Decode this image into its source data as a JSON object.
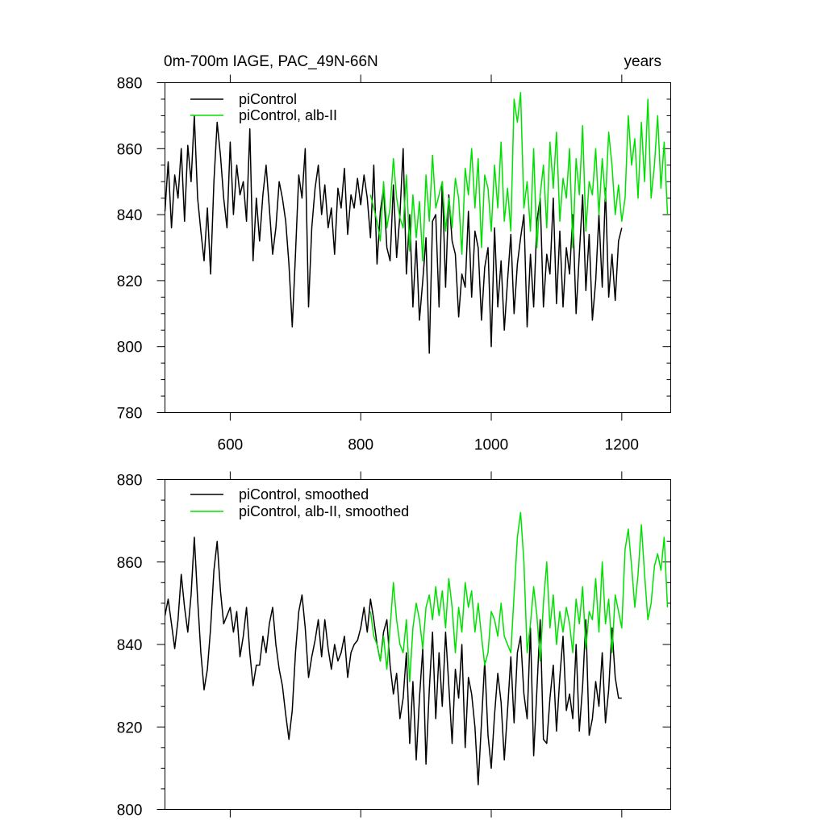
{
  "colors": {
    "picontrol": "#000000",
    "alb": "#00e000",
    "axis": "#000000",
    "background": "#ffffff"
  },
  "chart_data": [
    {
      "id": "top",
      "type": "line",
      "title": "0m-700m IAGE, PAC_49N-66N",
      "title_right": "years",
      "xlabel": "",
      "ylabel": "",
      "xlim": [
        500,
        1275
      ],
      "ylim": [
        780,
        880
      ],
      "xticks": [
        600,
        800,
        1000,
        1200
      ],
      "xtick_labels": [
        "600",
        "800",
        "1000",
        "1200"
      ],
      "yticks": [
        780,
        800,
        820,
        840,
        860,
        880
      ],
      "ytick_labels": [
        "780",
        "800",
        "820",
        "840",
        "860",
        "880"
      ],
      "legend_position": "top-left",
      "series": [
        {
          "name": "piControl",
          "color": "#000000",
          "x": [
            500,
            505,
            510,
            515,
            520,
            525,
            530,
            535,
            540,
            545,
            550,
            555,
            560,
            565,
            570,
            575,
            580,
            585,
            590,
            595,
            600,
            605,
            610,
            615,
            620,
            625,
            630,
            635,
            640,
            645,
            650,
            655,
            660,
            665,
            670,
            675,
            680,
            685,
            690,
            695,
            700,
            705,
            710,
            715,
            720,
            725,
            730,
            735,
            740,
            745,
            750,
            755,
            760,
            765,
            770,
            775,
            780,
            785,
            790,
            795,
            800,
            805,
            810,
            815,
            820,
            825,
            830,
            835,
            840,
            845,
            850,
            855,
            860,
            865,
            870,
            875,
            880,
            885,
            890,
            895,
            900,
            905,
            910,
            915,
            920,
            925,
            930,
            935,
            940,
            945,
            950,
            955,
            960,
            965,
            970,
            975,
            980,
            985,
            990,
            995,
            1000,
            1005,
            1010,
            1015,
            1020,
            1025,
            1030,
            1035,
            1040,
            1045,
            1050,
            1055,
            1060,
            1065,
            1070,
            1075,
            1080,
            1085,
            1090,
            1095,
            1100,
            1105,
            1110,
            1115,
            1120,
            1125,
            1130,
            1135,
            1140,
            1145,
            1150,
            1155,
            1160,
            1165,
            1170,
            1175,
            1180,
            1185,
            1190,
            1195,
            1200
          ],
          "values": [
            841,
            856,
            836,
            852,
            845,
            860,
            838,
            861,
            850,
            870,
            845,
            835,
            826,
            842,
            822,
            850,
            868,
            858,
            845,
            836,
            862,
            840,
            855,
            846,
            850,
            838,
            866,
            826,
            845,
            832,
            846,
            855,
            842,
            828,
            836,
            850,
            845,
            838,
            825,
            806,
            828,
            852,
            845,
            860,
            812,
            836,
            848,
            855,
            840,
            849,
            836,
            842,
            828,
            848,
            842,
            854,
            834,
            846,
            842,
            851,
            843,
            852,
            845,
            833,
            855,
            825,
            841,
            848,
            830,
            826,
            849,
            827,
            840,
            860,
            822,
            840,
            812,
            832,
            808,
            820,
            833,
            798,
            838,
            840,
            812,
            850,
            818,
            846,
            832,
            828,
            809,
            822,
            818,
            841,
            815,
            835,
            830,
            808,
            824,
            830,
            800,
            836,
            812,
            826,
            805,
            820,
            834,
            810,
            825,
            833,
            840,
            806,
            828,
            812,
            838,
            845,
            812,
            828,
            822,
            845,
            813,
            835,
            812,
            830,
            822,
            840,
            810,
            828,
            846,
            817,
            834,
            808,
            820,
            840,
            818,
            848,
            815,
            828,
            814,
            832,
            836
          ]
        },
        {
          "name": "piControl, alb-II",
          "color": "#00e000",
          "x": [
            815,
            820,
            825,
            830,
            835,
            840,
            845,
            850,
            855,
            860,
            865,
            870,
            875,
            880,
            885,
            890,
            895,
            900,
            905,
            910,
            915,
            920,
            925,
            930,
            935,
            940,
            945,
            950,
            955,
            960,
            965,
            970,
            975,
            980,
            985,
            990,
            995,
            1000,
            1005,
            1010,
            1015,
            1020,
            1025,
            1030,
            1035,
            1040,
            1045,
            1050,
            1055,
            1060,
            1065,
            1070,
            1075,
            1080,
            1085,
            1090,
            1095,
            1100,
            1105,
            1110,
            1115,
            1120,
            1125,
            1130,
            1135,
            1140,
            1145,
            1150,
            1155,
            1160,
            1165,
            1170,
            1175,
            1180,
            1185,
            1190,
            1195,
            1200,
            1205,
            1210,
            1215,
            1220,
            1225,
            1230,
            1235,
            1240,
            1245,
            1250,
            1255,
            1260,
            1265,
            1270
          ],
          "values": [
            846,
            842,
            838,
            832,
            850,
            836,
            842,
            857,
            845,
            839,
            836,
            852,
            829,
            846,
            833,
            844,
            826,
            852,
            838,
            858,
            842,
            846,
            850,
            835,
            845,
            836,
            851,
            845,
            828,
            854,
            846,
            860,
            842,
            857,
            830,
            852,
            848,
            835,
            855,
            842,
            862,
            838,
            848,
            835,
            875,
            868,
            877,
            842,
            850,
            835,
            860,
            830,
            846,
            855,
            836,
            862,
            848,
            865,
            838,
            851,
            845,
            860,
            830,
            857,
            846,
            867,
            835,
            850,
            846,
            860,
            840,
            857,
            844,
            865,
            855,
            840,
            849,
            838,
            845,
            870,
            855,
            863,
            845,
            868,
            850,
            875,
            845,
            855,
            870,
            848,
            862,
            840
          ]
        }
      ]
    },
    {
      "id": "bottom",
      "type": "line",
      "title": "",
      "xlabel": "",
      "ylabel": "",
      "xlim": [
        500,
        1275
      ],
      "ylim": [
        800,
        880
      ],
      "xticks": [
        600,
        800,
        1000,
        1200
      ],
      "xtick_labels": [],
      "yticks": [
        800,
        820,
        840,
        860,
        880
      ],
      "ytick_labels": [
        "800",
        "820",
        "840",
        "860",
        "880"
      ],
      "legend_position": "top-left",
      "series": [
        {
          "name": "piControl, smoothed",
          "color": "#000000",
          "x": [
            500,
            505,
            510,
            515,
            520,
            525,
            530,
            535,
            540,
            545,
            550,
            555,
            560,
            565,
            570,
            575,
            580,
            585,
            590,
            595,
            600,
            605,
            610,
            615,
            620,
            625,
            630,
            635,
            640,
            645,
            650,
            655,
            660,
            665,
            670,
            675,
            680,
            685,
            690,
            695,
            700,
            705,
            710,
            715,
            720,
            725,
            730,
            735,
            740,
            745,
            750,
            755,
            760,
            765,
            770,
            775,
            780,
            785,
            790,
            795,
            800,
            805,
            810,
            815,
            820,
            825,
            830,
            835,
            840,
            845,
            850,
            855,
            860,
            865,
            870,
            875,
            880,
            885,
            890,
            895,
            900,
            905,
            910,
            915,
            920,
            925,
            930,
            935,
            940,
            945,
            950,
            955,
            960,
            965,
            970,
            975,
            980,
            985,
            990,
            995,
            1000,
            1005,
            1010,
            1015,
            1020,
            1025,
            1030,
            1035,
            1040,
            1045,
            1050,
            1055,
            1060,
            1065,
            1070,
            1075,
            1080,
            1085,
            1090,
            1095,
            1100,
            1105,
            1110,
            1115,
            1120,
            1125,
            1130,
            1135,
            1140,
            1145,
            1150,
            1155,
            1160,
            1165,
            1170,
            1175,
            1180,
            1185,
            1190,
            1195,
            1200
          ],
          "values": [
            847,
            851,
            845,
            839,
            846,
            857,
            849,
            843,
            852,
            866,
            851,
            838,
            829,
            834,
            844,
            858,
            865,
            853,
            845,
            847,
            849,
            843,
            848,
            837,
            842,
            849,
            838,
            830,
            835,
            835,
            842,
            838,
            845,
            849,
            840,
            834,
            830,
            823,
            817,
            824,
            838,
            848,
            852,
            844,
            832,
            837,
            841,
            846,
            837,
            846,
            839,
            834,
            840,
            836,
            838,
            842,
            832,
            838,
            840,
            841,
            844,
            849,
            843,
            851,
            846,
            840,
            836,
            843,
            846,
            835,
            828,
            833,
            822,
            827,
            838,
            816,
            831,
            812,
            827,
            839,
            811,
            829,
            843,
            822,
            838,
            825,
            843,
            830,
            816,
            834,
            827,
            840,
            815,
            832,
            828,
            820,
            806,
            821,
            836,
            818,
            810,
            823,
            833,
            826,
            812,
            824,
            837,
            821,
            838,
            842,
            828,
            822,
            844,
            813,
            829,
            846,
            817,
            816,
            827,
            835,
            819,
            832,
            842,
            824,
            828,
            822,
            840,
            819,
            830,
            846,
            818,
            822,
            831,
            825,
            838,
            821,
            829,
            844,
            832,
            827,
            827
          ]
        },
        {
          "name": "piControl, alb-II, smoothed",
          "color": "#00e000",
          "x": [
            815,
            820,
            825,
            830,
            835,
            840,
            845,
            850,
            855,
            860,
            865,
            870,
            875,
            880,
            885,
            890,
            895,
            900,
            905,
            910,
            915,
            920,
            925,
            930,
            935,
            940,
            945,
            950,
            955,
            960,
            965,
            970,
            975,
            980,
            985,
            990,
            995,
            1000,
            1005,
            1010,
            1015,
            1020,
            1025,
            1030,
            1035,
            1040,
            1045,
            1050,
            1055,
            1060,
            1065,
            1070,
            1075,
            1080,
            1085,
            1090,
            1095,
            1100,
            1105,
            1110,
            1115,
            1120,
            1125,
            1130,
            1135,
            1140,
            1145,
            1150,
            1155,
            1160,
            1165,
            1170,
            1175,
            1180,
            1185,
            1190,
            1195,
            1200,
            1205,
            1210,
            1215,
            1220,
            1225,
            1230,
            1235,
            1240,
            1245,
            1250,
            1255,
            1260,
            1265,
            1270
          ],
          "values": [
            848,
            842,
            840,
            836,
            842,
            834,
            844,
            855,
            846,
            840,
            838,
            846,
            831,
            844,
            850,
            846,
            839,
            849,
            852,
            846,
            854,
            847,
            853,
            844,
            856,
            849,
            838,
            849,
            843,
            855,
            849,
            853,
            843,
            850,
            842,
            835,
            838,
            848,
            846,
            842,
            850,
            842,
            840,
            838,
            852,
            866,
            872,
            860,
            838,
            845,
            854,
            847,
            836,
            850,
            860,
            844,
            852,
            840,
            848,
            843,
            849,
            845,
            838,
            851,
            845,
            854,
            839,
            848,
            846,
            856,
            843,
            860,
            845,
            851,
            838,
            852,
            848,
            844,
            863,
            868,
            859,
            849,
            857,
            869,
            857,
            846,
            850,
            859,
            862,
            858,
            866,
            849
          ]
        }
      ]
    }
  ]
}
